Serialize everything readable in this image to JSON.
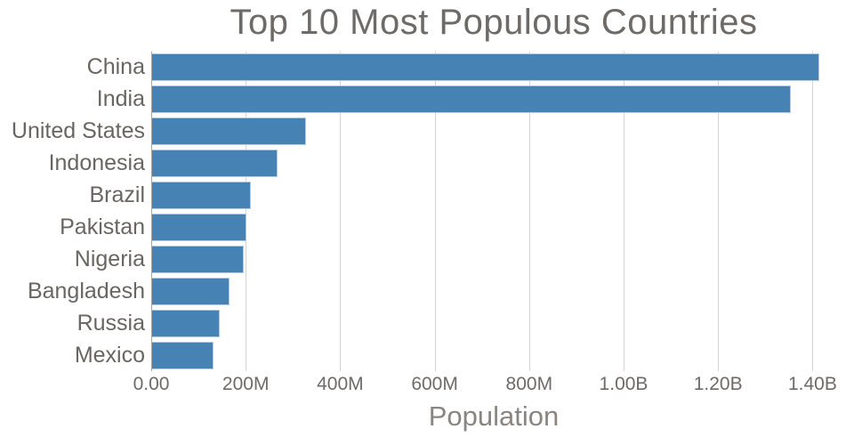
{
  "chart_data": {
    "type": "bar",
    "orientation": "horizontal",
    "title": "Top 10 Most Populous Countries",
    "xlabel": "Population",
    "ylabel": "",
    "categories": [
      "China",
      "India",
      "United States",
      "Indonesia",
      "Brazil",
      "Pakistan",
      "Nigeria",
      "Bangladesh",
      "Russia",
      "Mexico"
    ],
    "values_millions": [
      1415,
      1354,
      327,
      267,
      211,
      201,
      196,
      166,
      144,
      131
    ],
    "xlim_millions": [
      0,
      1450
    ],
    "x_ticks": [
      {
        "value_millions": 0,
        "label": "0.00"
      },
      {
        "value_millions": 200,
        "label": "200M"
      },
      {
        "value_millions": 400,
        "label": "400M"
      },
      {
        "value_millions": 600,
        "label": "600M"
      },
      {
        "value_millions": 800,
        "label": "800M"
      },
      {
        "value_millions": 1000,
        "label": "1.00B"
      },
      {
        "value_millions": 1200,
        "label": "1.20B"
      },
      {
        "value_millions": 1400,
        "label": "1.40B"
      }
    ],
    "grid": "vertical-only",
    "legend": "none",
    "colors": {
      "bar_fill": "#4682b4",
      "bar_border": "#b3cce3",
      "gridline": "#d4d4d4",
      "axis_line": "#a3a3a3",
      "title_text": "#6e6a67",
      "tick_text": "#6e6a67",
      "category_text": "#696661",
      "axis_label_text": "#8a8580"
    }
  }
}
